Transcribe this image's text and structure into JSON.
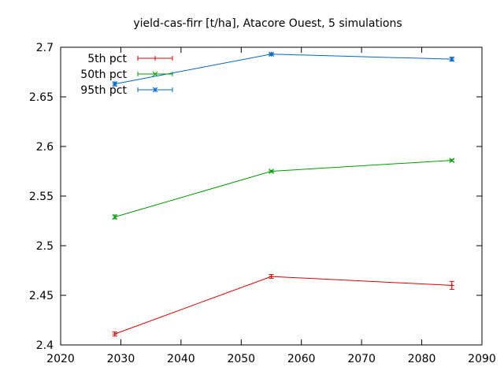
{
  "chart_data": {
    "type": "line",
    "title": "yield-cas-firr [t/ha], Atacore Ouest, 5 simulations",
    "xlabel": "",
    "ylabel": "",
    "xlim": [
      2020,
      2090
    ],
    "ylim": [
      2.4,
      2.7
    ],
    "xticks": [
      2020,
      2030,
      2040,
      2050,
      2060,
      2070,
      2080,
      2090
    ],
    "yticks": [
      2.4,
      2.45,
      2.5,
      2.55,
      2.6,
      2.65,
      2.7
    ],
    "xtick_labels": [
      "2020",
      "2030",
      "2040",
      "2050",
      "2060",
      "2070",
      "2080",
      "2090"
    ],
    "ytick_labels": [
      "2.4",
      "2.45",
      "2.5",
      "2.55",
      "2.6",
      "2.65",
      "2.7"
    ],
    "grid": false,
    "legend_position": "top-left",
    "x": [
      2029,
      2055,
      2085
    ],
    "series": [
      {
        "name": "5th pct",
        "color": "#dd0000",
        "marker": "plus",
        "values": [
          2.411,
          2.469,
          2.46
        ],
        "errors": [
          0.002,
          0.002,
          0.004
        ]
      },
      {
        "name": "50th pct",
        "color": "#009e00",
        "marker": "x",
        "values": [
          2.529,
          2.575,
          2.586
        ],
        "errors": [
          0.002,
          0.001,
          0.001
        ]
      },
      {
        "name": "95th pct",
        "color": "#0066cc",
        "marker": "star",
        "values": [
          2.663,
          2.693,
          2.688
        ],
        "errors": [
          0.002,
          0.001,
          0.002
        ]
      }
    ]
  }
}
